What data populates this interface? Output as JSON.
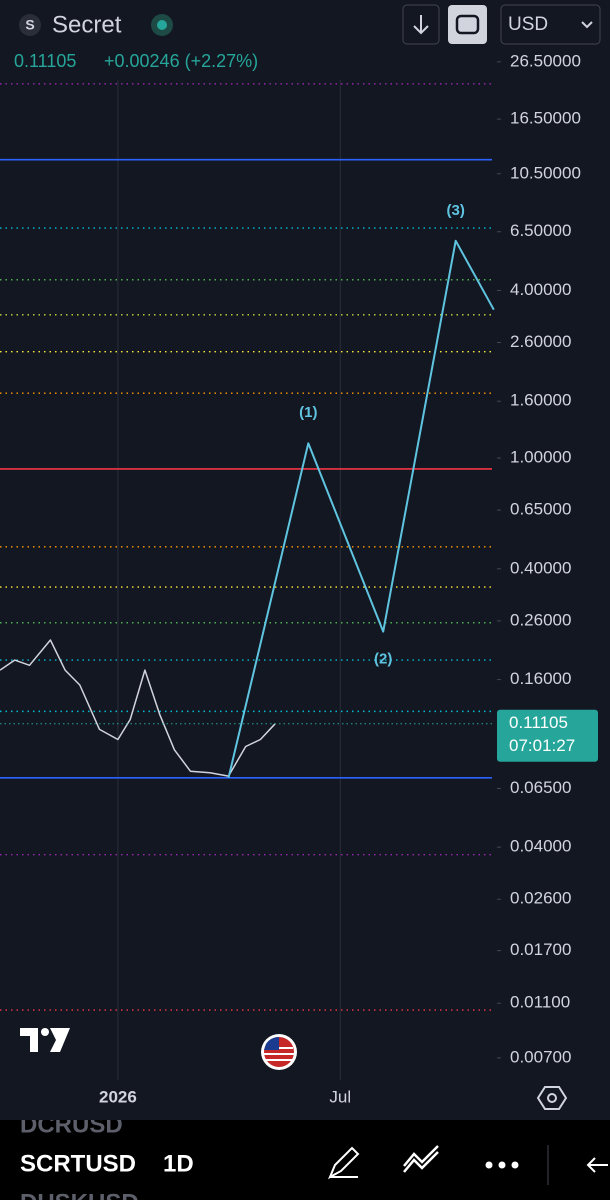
{
  "header": {
    "symbol_icon": "S",
    "symbol": "Secret",
    "change": "+0.00246 (+2.27%)",
    "currency": "USD"
  },
  "chart_data": {
    "type": "line",
    "log_scale": true,
    "xlim": [
      -96,
      307
    ],
    "ylim": [
      0.00583,
      44.2
    ],
    "xticks": [
      {
        "value": 0,
        "label": "2026"
      },
      {
        "value": 181,
        "label": "Jul"
      }
    ],
    "xgrid": true,
    "yticks": [
      {
        "value": 26.5,
        "label": "26.50000"
      },
      {
        "value": 16.5,
        "label": "16.50000"
      },
      {
        "value": 10.5,
        "label": "10.50000"
      },
      {
        "value": 6.5,
        "label": "6.50000"
      },
      {
        "value": 4,
        "label": "4.00000"
      },
      {
        "value": 2.6,
        "label": "2.60000"
      },
      {
        "value": 1.6,
        "label": "1.60000"
      },
      {
        "value": 1,
        "label": "1.00000"
      },
      {
        "value": 0.65,
        "label": "0.65000"
      },
      {
        "value": 0.4,
        "label": "0.40000"
      },
      {
        "value": 0.26,
        "label": "0.26000"
      },
      {
        "value": 0.16,
        "label": "0.16000"
      },
      {
        "value": 0.065,
        "label": "0.06500"
      },
      {
        "value": 0.04,
        "label": "0.04000"
      },
      {
        "value": 0.026,
        "label": "0.02600"
      },
      {
        "value": 0.017,
        "label": "0.01700"
      },
      {
        "value": 0.011,
        "label": "0.01100"
      },
      {
        "value": 0.007,
        "label": "0.00700"
      }
    ],
    "x": [
      -96,
      -84,
      -72,
      -55,
      -43,
      -31,
      -15,
      0,
      10,
      22,
      34,
      46,
      59,
      75,
      90,
      104,
      116,
      128
    ],
    "values": [
      0.173,
      0.188,
      0.18,
      0.222,
      0.173,
      0.153,
      0.106,
      0.0975,
      0.115,
      0.173,
      0.12,
      0.0895,
      0.075,
      0.074,
      0.072,
      0.092,
      0.0975,
      0.111
    ],
    "color": "#d1d4dc",
    "wave": {
      "x": [
        90,
        155,
        216,
        275,
        306
      ],
      "values": [
        0.071,
        1.13,
        0.238,
        6.03,
        3.41
      ],
      "labels": [
        null,
        "(1)",
        "(2)",
        "(3)",
        null
      ],
      "color": "#5fc4e0"
    },
    "levels": [
      {
        "value": 22.1,
        "color": "#9c27b0",
        "style": "dotted"
      },
      {
        "value": 11.8,
        "color": "#2962ff",
        "style": "solid"
      },
      {
        "value": 6.7,
        "color": "#00bcd4",
        "style": "dotted"
      },
      {
        "value": 4.37,
        "color": "#4caf50",
        "style": "dotted"
      },
      {
        "value": 3.27,
        "color": "#cddc39",
        "style": "dotted"
      },
      {
        "value": 2.41,
        "color": "#ffeb3b",
        "style": "dotted"
      },
      {
        "value": 1.71,
        "color": "#ff9800",
        "style": "dotted"
      },
      {
        "value": 0.914,
        "color": "#f23645",
        "style": "solid"
      },
      {
        "value": 0.48,
        "color": "#ff9800",
        "style": "dotted"
      },
      {
        "value": 0.344,
        "color": "#ffeb3b",
        "style": "dotted"
      },
      {
        "value": 0.256,
        "color": "#4caf50",
        "style": "dotted"
      },
      {
        "value": 0.188,
        "color": "#00bcd4",
        "style": "dotted"
      },
      {
        "value": 0.123,
        "color": "#00bcd4",
        "style": "dotted"
      },
      {
        "value": 0.071,
        "color": "#2962ff",
        "style": "solid"
      },
      {
        "value": 0.0376,
        "color": "#9c27b0",
        "style": "dotted"
      },
      {
        "value": 0.0104,
        "color": "#f23645",
        "style": "dotted"
      }
    ],
    "last_price": 0.11105,
    "countdown": "07:01:27",
    "last_price_color": "#26a69a"
  },
  "footer": {
    "symbol": "SCRTUSD",
    "interval": "1D",
    "ghost_above": "DCRUSD",
    "ghost_below": "DUSKUSD"
  }
}
